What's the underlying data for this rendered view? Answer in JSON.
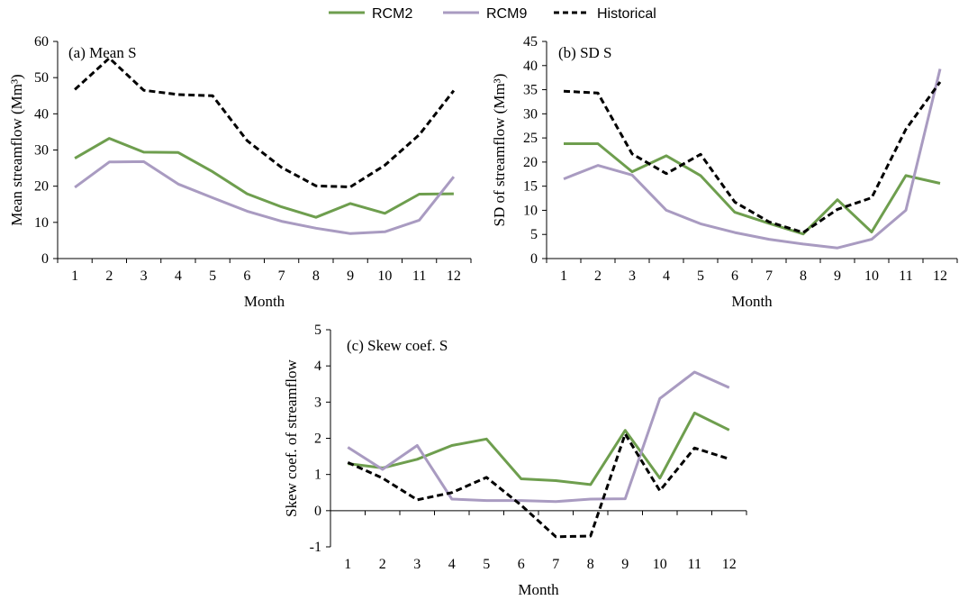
{
  "legend": {
    "placement": "top-center",
    "items": [
      {
        "name": "RCM2",
        "color": "#6e9e4e",
        "dashed": false
      },
      {
        "name": "RCM9",
        "color": "#a99bc1",
        "dashed": false
      },
      {
        "name": "Historical",
        "color": "#000000",
        "dashed": true
      }
    ]
  },
  "chart_data": [
    {
      "type": "line",
      "title": "(a) Mean S",
      "xlabel": "Month",
      "ylabel": "Mean streamflow (Mm³)",
      "categories": [
        "1",
        "2",
        "3",
        "4",
        "5",
        "6",
        "7",
        "8",
        "9",
        "10",
        "11",
        "12"
      ],
      "ylim": [
        0,
        60
      ],
      "yticks": [
        0,
        10,
        20,
        30,
        40,
        50,
        60
      ],
      "grid": false,
      "series": [
        {
          "name": "RCM2",
          "color": "#6e9e4e",
          "dashed": false,
          "values": [
            27.7,
            33.2,
            29.4,
            29.3,
            24.0,
            17.9,
            14.3,
            11.4,
            15.2,
            12.5,
            17.8,
            17.9
          ]
        },
        {
          "name": "RCM9",
          "color": "#a99bc1",
          "dashed": false,
          "values": [
            19.7,
            26.7,
            26.8,
            20.6,
            16.8,
            13.1,
            10.3,
            8.4,
            6.9,
            7.4,
            10.6,
            22.6
          ]
        },
        {
          "name": "Historical",
          "color": "#000000",
          "dashed": true,
          "values": [
            46.7,
            55.4,
            46.5,
            45.3,
            45.0,
            32.6,
            25.2,
            20.1,
            19.8,
            25.8,
            34.2,
            46.4
          ]
        }
      ]
    },
    {
      "type": "line",
      "title": "(b) SD S",
      "xlabel": "Month",
      "ylabel": "SD of streamflow (Mm³)",
      "categories": [
        "1",
        "2",
        "3",
        "4",
        "5",
        "6",
        "7",
        "8",
        "9",
        "10",
        "11",
        "12"
      ],
      "ylim": [
        0,
        45
      ],
      "yticks": [
        0,
        5,
        10,
        15,
        20,
        25,
        30,
        35,
        40,
        45
      ],
      "grid": false,
      "series": [
        {
          "name": "RCM2",
          "color": "#6e9e4e",
          "dashed": false,
          "values": [
            23.8,
            23.8,
            18.0,
            21.3,
            17.2,
            9.6,
            7.3,
            5.1,
            12.2,
            5.5,
            17.2,
            15.6
          ]
        },
        {
          "name": "RCM9",
          "color": "#a99bc1",
          "dashed": false,
          "values": [
            16.5,
            19.3,
            17.3,
            10.0,
            7.2,
            5.4,
            4.0,
            3.0,
            2.2,
            4.0,
            10.0,
            39.3
          ]
        },
        {
          "name": "Historical",
          "color": "#000000",
          "dashed": true,
          "values": [
            34.7,
            34.3,
            21.7,
            17.6,
            21.6,
            11.7,
            7.6,
            5.4,
            10.2,
            12.6,
            26.8,
            36.6
          ]
        }
      ]
    },
    {
      "type": "line",
      "title": "(c) Skew coef. S",
      "xlabel": "Month",
      "ylabel": "Skew coef. of streamflow",
      "categories": [
        "1",
        "2",
        "3",
        "4",
        "5",
        "6",
        "7",
        "8",
        "9",
        "10",
        "11",
        "12"
      ],
      "ylim": [
        -1,
        5
      ],
      "yticks": [
        -1,
        0,
        1,
        2,
        3,
        4,
        5
      ],
      "grid": false,
      "series": [
        {
          "name": "RCM2",
          "color": "#6e9e4e",
          "dashed": false,
          "values": [
            1.3,
            1.18,
            1.42,
            1.8,
            1.98,
            0.88,
            0.83,
            0.72,
            2.22,
            0.9,
            2.7,
            2.23
          ]
        },
        {
          "name": "RCM9",
          "color": "#a99bc1",
          "dashed": false,
          "values": [
            1.75,
            1.14,
            1.8,
            0.32,
            0.28,
            0.28,
            0.25,
            0.32,
            0.33,
            3.1,
            3.83,
            3.4
          ]
        },
        {
          "name": "Historical",
          "color": "#000000",
          "dashed": true,
          "values": [
            1.33,
            0.9,
            0.3,
            0.5,
            0.92,
            0.15,
            -0.72,
            -0.7,
            2.12,
            0.55,
            1.73,
            1.43
          ]
        }
      ]
    }
  ]
}
